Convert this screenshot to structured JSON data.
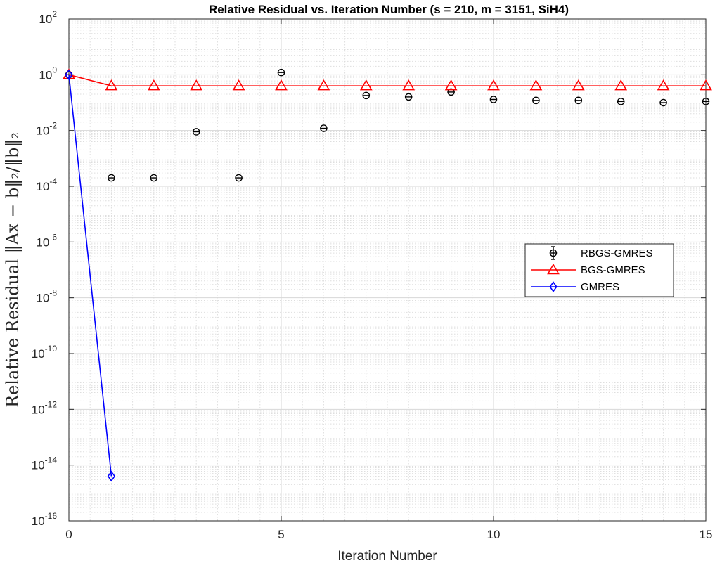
{
  "chart_data": {
    "type": "line",
    "title": "Relative Residual vs. Iteration Number (s = 210, m = 3151, SiH4)",
    "xlabel": "Iteration Number",
    "ylabel": "Relative Residual ‖Ax − b‖₂/‖b‖₂",
    "xlim": [
      0,
      15
    ],
    "ylim": [
      1e-16,
      100
    ],
    "yscale": "log",
    "grid": true,
    "legend_position": "right",
    "x_ticks": [
      0,
      5,
      10,
      15
    ],
    "y_tick_exponents": [
      2,
      0,
      -2,
      -4,
      -6,
      -8,
      -10,
      -12,
      -14,
      -16
    ],
    "y_tick_base": "10",
    "series": [
      {
        "name": "RBGS-GMRES",
        "color": "#000000",
        "marker": "circle-errorbar",
        "line": false,
        "x": [
          0,
          1,
          2,
          3,
          4,
          5,
          6,
          7,
          8,
          9,
          10,
          11,
          12,
          13,
          14,
          15
        ],
        "y": [
          1.0,
          0.0002,
          0.0002,
          0.009,
          0.0002,
          1.2,
          0.012,
          0.18,
          0.16,
          0.24,
          0.13,
          0.12,
          0.12,
          0.11,
          0.1,
          0.11
        ]
      },
      {
        "name": "BGS-GMRES",
        "color": "#ff0000",
        "marker": "triangle",
        "line": true,
        "x": [
          0,
          1,
          2,
          3,
          4,
          5,
          6,
          7,
          8,
          9,
          10,
          11,
          12,
          13,
          14,
          15
        ],
        "y": [
          1.0,
          0.4,
          0.4,
          0.4,
          0.4,
          0.4,
          0.4,
          0.4,
          0.4,
          0.4,
          0.4,
          0.4,
          0.4,
          0.4,
          0.4,
          0.4
        ]
      },
      {
        "name": "GMRES",
        "color": "#0000ff",
        "marker": "diamond",
        "line": true,
        "x": [
          0,
          1
        ],
        "y": [
          1.0,
          4e-15
        ]
      }
    ]
  }
}
